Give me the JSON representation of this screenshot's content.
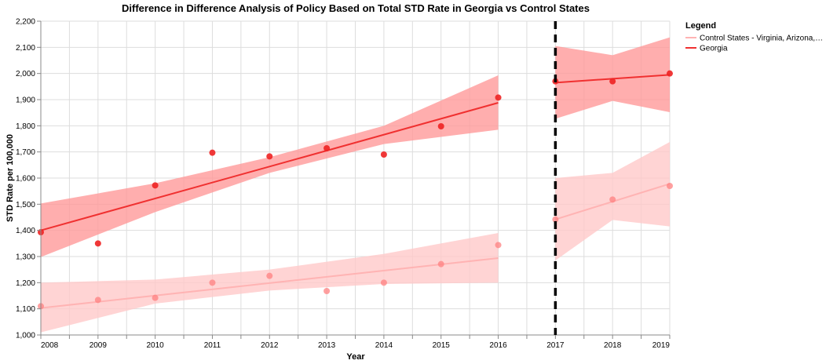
{
  "chart_data": {
    "type": "line",
    "title": "Difference in Difference Analysis of Policy Based on Total STD Rate in Georgia vs Control States",
    "xlabel": "Year",
    "ylabel": "STD Rate per 100,000",
    "xlim": [
      2008,
      2019
    ],
    "ylim": [
      1000,
      2200
    ],
    "x_ticks": [
      "2008",
      "2009",
      "2010",
      "2011",
      "2012",
      "2013",
      "2014",
      "2015",
      "2016",
      "2017",
      "2018",
      "2019"
    ],
    "y_ticks": [
      "1,000",
      "1,100",
      "1,200",
      "1,300",
      "1,400",
      "1,500",
      "1,600",
      "1,700",
      "1,800",
      "1,900",
      "2,000",
      "2,100",
      "2,200"
    ],
    "grid": true,
    "policy_year": 2017,
    "legend": {
      "title": "Legend",
      "position": "right",
      "entries": [
        {
          "label": "Control States - Virginia, Arizona,…",
          "color": "#ffb3b3"
        },
        {
          "label": "Georgia",
          "color": "#f03030"
        }
      ]
    },
    "series": [
      {
        "name": "Georgia",
        "color": "#f03030",
        "points_x": [
          2008,
          2009,
          2010,
          2011,
          2012,
          2013,
          2014,
          2015,
          2016,
          2017,
          2018,
          2019
        ],
        "points_y": [
          1393,
          1350,
          1572,
          1697,
          1683,
          1714,
          1690,
          1798,
          1908,
          1970,
          1970,
          2000
        ],
        "pre_fit": {
          "x": [
            2008,
            2016
          ],
          "y": [
            1400,
            1888
          ]
        },
        "pre_band": {
          "x": [
            2008,
            2010,
            2012,
            2014,
            2016
          ],
          "lower": [
            1298,
            1470,
            1620,
            1730,
            1785
          ],
          "upper": [
            1503,
            1580,
            1680,
            1800,
            1993
          ]
        },
        "post_fit": {
          "x": [
            2017,
            2019
          ],
          "y": [
            1965,
            1995
          ]
        },
        "post_band": {
          "x": [
            2017,
            2018,
            2019
          ],
          "lower": [
            1827,
            1895,
            1852
          ],
          "upper": [
            2105,
            2070,
            2138
          ]
        }
      },
      {
        "name": "Control States - Virginia, Arizona,…",
        "color": "#ff8c8c",
        "points_x": [
          2008,
          2009,
          2010,
          2011,
          2012,
          2013,
          2014,
          2015,
          2016,
          2017,
          2018,
          2019
        ],
        "points_y": [
          1110,
          1134,
          1142,
          1200,
          1226,
          1168,
          1200,
          1271,
          1344,
          1442,
          1518,
          1570
        ],
        "pre_fit": {
          "x": [
            2008,
            2016
          ],
          "y": [
            1103,
            1294
          ]
        },
        "pre_band": {
          "x": [
            2008,
            2010,
            2012,
            2014,
            2016
          ],
          "lower": [
            1010,
            1120,
            1170,
            1195,
            1200
          ],
          "upper": [
            1200,
            1212,
            1250,
            1310,
            1390
          ]
        },
        "post_fit": {
          "x": [
            2017,
            2019
          ],
          "y": [
            1442,
            1578
          ]
        },
        "post_band": {
          "x": [
            2017,
            2018,
            2019
          ],
          "lower": [
            1285,
            1440,
            1415
          ],
          "upper": [
            1600,
            1620,
            1738
          ]
        }
      }
    ]
  }
}
